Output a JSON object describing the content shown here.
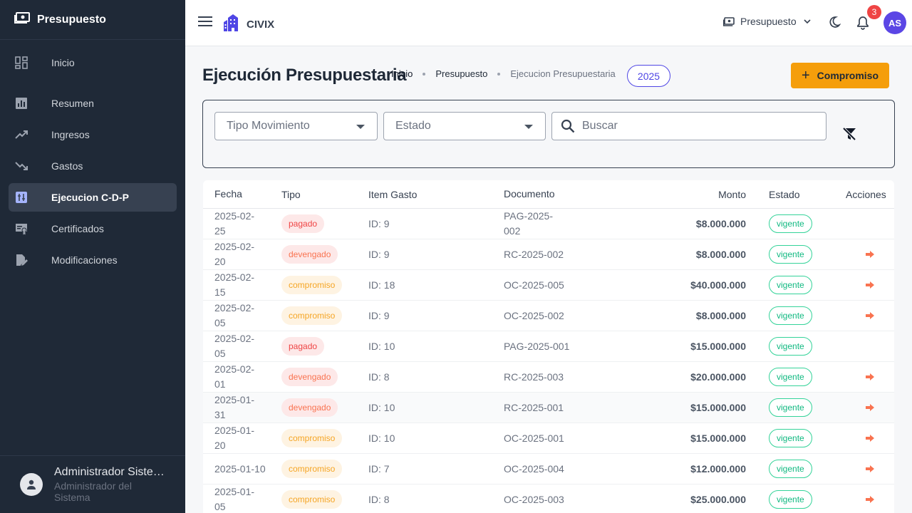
{
  "sidebar": {
    "title": "Presupuesto",
    "items": [
      {
        "label": "Inicio",
        "icon": "dashboard-icon"
      },
      {
        "label": "Resumen",
        "icon": "bar-chart-icon"
      },
      {
        "label": "Ingresos",
        "icon": "trending-up-icon"
      },
      {
        "label": "Gastos",
        "icon": "trending-down-icon"
      },
      {
        "label": "Ejecucion C-D-P",
        "icon": "ledger-icon",
        "active": true
      },
      {
        "label": "Certificados",
        "icon": "certificate-icon"
      },
      {
        "label": "Modificaciones",
        "icon": "edit-document-icon"
      }
    ],
    "user": {
      "name": "Administrador Sistema",
      "role": "Administrador del Sistema"
    }
  },
  "topbar": {
    "brand": "CIVIX",
    "module": "Presupuesto",
    "notifications": "3",
    "avatar": "AS"
  },
  "page": {
    "title": "Ejecución Presupuestaria",
    "breadcrumb": [
      "Inicio",
      "Presupuesto",
      "Ejecucion Presupuestaria"
    ],
    "year": "2025",
    "new_button": "Compromiso"
  },
  "filters": {
    "tipo_placeholder": "Tipo Movimiento",
    "estado_placeholder": "Estado",
    "search_placeholder": "Buscar"
  },
  "table": {
    "headers": {
      "fecha": "Fecha",
      "tipo": "Tipo",
      "item": "Item Gasto",
      "documento": "Documento",
      "monto": "Monto",
      "estado": "Estado",
      "acciones": "Acciones"
    },
    "rows": [
      {
        "fecha": "2025-02-25",
        "tipo": "pagado",
        "item": "ID: 9",
        "documento": "PAG-2025-002",
        "monto": "$8.000.000",
        "estado": "vigente",
        "action": false
      },
      {
        "fecha": "2025-02-20",
        "tipo": "devengado",
        "item": "ID: 9",
        "documento": "RC-2025-002",
        "monto": "$8.000.000",
        "estado": "vigente",
        "action": true
      },
      {
        "fecha": "2025-02-15",
        "tipo": "compromiso",
        "item": "ID: 18",
        "documento": "OC-2025-005",
        "monto": "$40.000.000",
        "estado": "vigente",
        "action": true
      },
      {
        "fecha": "2025-02-05",
        "tipo": "compromiso",
        "item": "ID: 9",
        "documento": "OC-2025-002",
        "monto": "$8.000.000",
        "estado": "vigente",
        "action": true
      },
      {
        "fecha": "2025-02-05",
        "tipo": "pagado",
        "item": "ID: 10",
        "documento": "PAG-2025-001",
        "monto": "$15.000.000",
        "estado": "vigente",
        "action": false
      },
      {
        "fecha": "2025-02-01",
        "tipo": "devengado",
        "item": "ID: 8",
        "documento": "RC-2025-003",
        "monto": "$20.000.000",
        "estado": "vigente",
        "action": true
      },
      {
        "fecha": "2025-01-31",
        "tipo": "devengado",
        "item": "ID: 10",
        "documento": "RC-2025-001",
        "monto": "$15.000.000",
        "estado": "vigente",
        "action": true
      },
      {
        "fecha": "2025-01-20",
        "tipo": "compromiso",
        "item": "ID: 10",
        "documento": "OC-2025-001",
        "monto": "$15.000.000",
        "estado": "vigente",
        "action": true
      },
      {
        "fecha": "2025-01-10",
        "tipo": "compromiso",
        "item": "ID: 7",
        "documento": "OC-2025-004",
        "monto": "$12.000.000",
        "estado": "vigente",
        "action": true
      },
      {
        "fecha": "2025-01-05",
        "tipo": "compromiso",
        "item": "ID: 8",
        "documento": "OC-2025-003",
        "monto": "$25.000.000",
        "estado": "vigente",
        "action": true
      }
    ]
  },
  "colors": {
    "sidebar_bg": "#1f2937",
    "accent": "#f59e0b",
    "brand": "#4f46e5",
    "vigente": "#10b981",
    "action_arrow": "#f97350"
  }
}
